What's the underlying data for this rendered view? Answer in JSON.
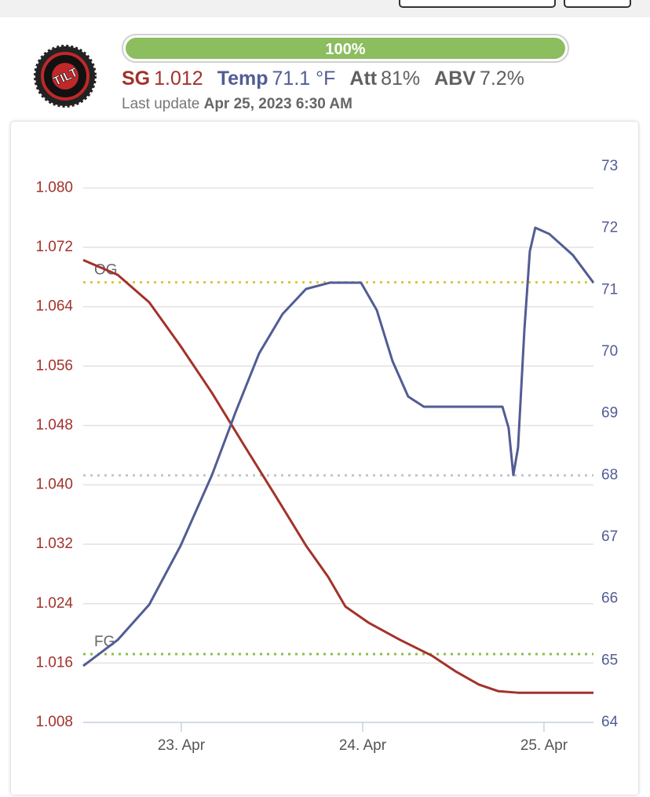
{
  "header": {
    "logo": "TILT",
    "progress": {
      "value": 100,
      "label": "100%"
    },
    "stats": [
      {
        "name": "SG",
        "value": "1.012",
        "color": "#a3322b"
      },
      {
        "name": "Temp",
        "value": "71.1 °F",
        "color": "#525c94"
      },
      {
        "name": "Att",
        "value": "81%",
        "color": "#606060"
      },
      {
        "name": "ABV",
        "value": "7.2%",
        "color": "#606060"
      }
    ],
    "last_update": {
      "label": "Last update",
      "value": "Apr 25, 2023 6:30 AM"
    }
  },
  "chart_data": {
    "type": "line",
    "xlim": [
      22.459,
      25.273
    ],
    "xticks": [
      {
        "value": 23,
        "label": "23. Apr"
      },
      {
        "value": 24,
        "label": "24. Apr"
      },
      {
        "value": 25,
        "label": "25. Apr"
      }
    ],
    "ylim": [
      1.008,
      1.0829
    ],
    "yticks": [
      1.008,
      1.016,
      1.024,
      1.032,
      {
        "value": 1.04,
        "label": "1.040"
      },
      1.048,
      1.056,
      1.064,
      1.072,
      {
        "value": 1.08,
        "label": "1.080"
      }
    ],
    "y2lim": [
      64,
      73
    ],
    "y2ticks": [
      64,
      65,
      66,
      67,
      68,
      69,
      70,
      71,
      72,
      73
    ],
    "grid": true,
    "series": [
      {
        "name": "SG",
        "color": "#a3322b",
        "axis": "y",
        "x": [
          22.459,
          22.649,
          22.823,
          22.996,
          23.169,
          23.342,
          23.515,
          23.688,
          23.81,
          23.905,
          24.035,
          24.208,
          24.381,
          24.511,
          24.641,
          24.749,
          24.857,
          25.273
        ],
        "values": [
          1.0703,
          1.0683,
          1.0646,
          1.0587,
          1.0524,
          1.0455,
          1.0387,
          1.0318,
          1.0276,
          1.0236,
          1.0214,
          1.0191,
          1.017,
          1.0149,
          1.0131,
          1.0122,
          1.012,
          1.012
        ]
      },
      {
        "name": "Temp",
        "color": "#525c94",
        "axis": "y2",
        "x": [
          22.459,
          22.649,
          22.823,
          22.996,
          23.169,
          23.299,
          23.429,
          23.558,
          23.688,
          23.818,
          23.991,
          24.078,
          24.165,
          24.251,
          24.338,
          24.771,
          24.805,
          24.831,
          24.857,
          24.892,
          24.922,
          24.952,
          25.03,
          25.16,
          25.273
        ],
        "values": [
          64.915,
          65.335,
          65.907,
          66.86,
          68.004,
          69.021,
          69.974,
          70.61,
          71.017,
          71.118,
          71.118,
          70.674,
          69.847,
          69.275,
          69.11,
          69.11,
          68.767,
          68.004,
          68.449,
          70.356,
          71.627,
          72.008,
          71.906,
          71.563,
          71.118
        ]
      }
    ],
    "plot_lines": [
      {
        "label": "OG",
        "value": 1.0673,
        "axis": "y",
        "color": "#d9cc3c"
      },
      {
        "label": "FG",
        "value": 1.0172,
        "axis": "y",
        "color": "#8bbf4a"
      },
      {
        "value": 68,
        "axis": "y2",
        "color": "#c4c6cc"
      }
    ]
  }
}
